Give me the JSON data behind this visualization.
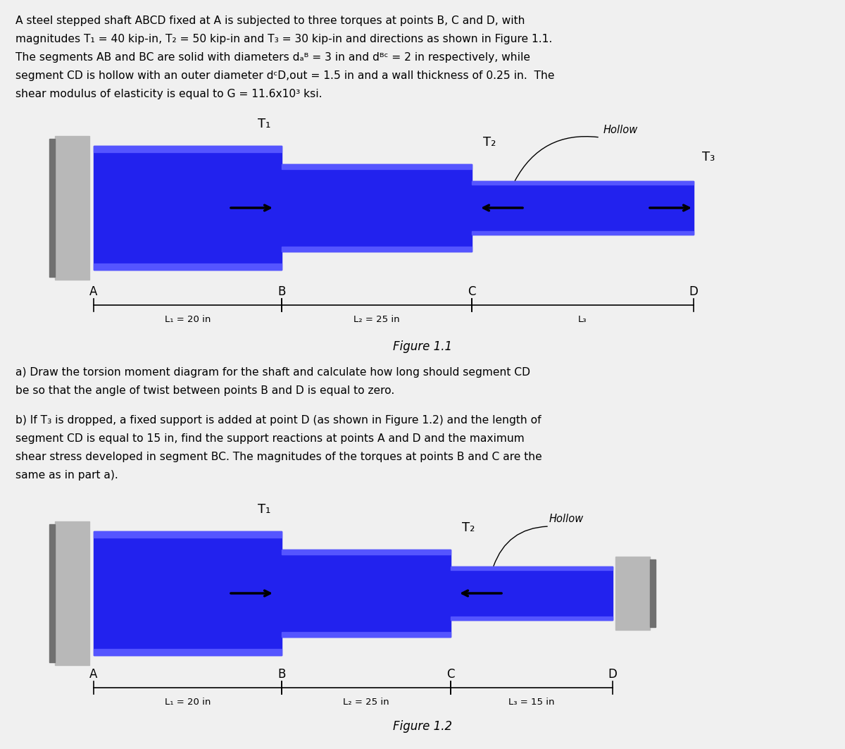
{
  "bg_color": "#f0f0f0",
  "desc_line1": "A steel stepped shaft ABCD fixed at A is subjected to three torques at points B, C and D, with",
  "desc_line2": "magnitudes T₁ = 40 kip-in, T₂ = 50 kip-in and T₃ = 30 kip-in and directions as shown in Figure 1.1.",
  "desc_line3": "The segments AB and BC are solid with diameters dₐᴮ = 3 in and dᴮᶜ = 2 in respectively, while",
  "desc_line4": "segment CD is hollow with an outer diameter dᶜD,out = 1.5 in and a wall thickness of 0.25 in.  The",
  "desc_line5": "shear modulus of elasticity is equal to G = 11.6x10³ ksi.",
  "part_a_line1": "a) Draw the torsion moment diagram for the shaft and calculate how long should segment CD",
  "part_a_line2": "be so that the angle of twist between points B and D is equal to zero.",
  "part_b_line1": "b) If T₃ is dropped, a fixed support is added at point D (as shown in Figure 1.2) and the length of",
  "part_b_line2": "segment CD is equal to 15 in, find the support reactions at points A and D and the maximum",
  "part_b_line3": "shear stress developed in segment BC. The magnitudes of the torques at points B and C are the",
  "part_b_line4": "same as in part a).",
  "fig1_caption": "Figure 1.1",
  "fig2_caption": "Figure 1.2",
  "hollow": "Hollow",
  "T1": "T₁",
  "T2": "T₂",
  "T3": "T₃",
  "fig1_L1": "L₁ = 20 in",
  "fig1_L2": "L₂ = 25 in",
  "fig1_L3": "L₃",
  "fig2_L1": "L₁ = 20 in",
  "fig2_L2": "L₂ = 25 in",
  "fig2_L3": "L₃ = 15 in",
  "blue_main": "#2222ee",
  "blue_light": "#5555ff",
  "support_light": "#b8b8b8",
  "support_dark": "#707070"
}
